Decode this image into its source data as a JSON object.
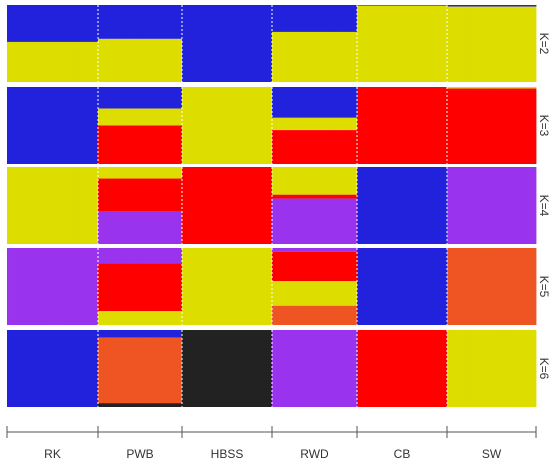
{
  "chart_data": {
    "type": "bar",
    "stacked": true,
    "normalized": true,
    "title": "",
    "xlabel": "",
    "ylabel": "",
    "ylim": [
      0,
      1
    ],
    "grid": false,
    "legend": "none",
    "separator_style": "white dotted vertical lines between populations; solid tick marks on the bottom axis",
    "colors": {
      "blue": "#2222dd",
      "yellow": "#dddd00",
      "red": "#ff0000",
      "purple": "#9933ee",
      "orange": "#ee5522",
      "black": "#222222"
    },
    "populations": [
      {
        "label": "RK",
        "individuals": 15
      },
      {
        "label": "PWB",
        "individuals": 15
      },
      {
        "label": "HBSS",
        "individuals": 15
      },
      {
        "label": "RWD",
        "individuals": 15
      },
      {
        "label": "CB",
        "individuals": 15
      },
      {
        "label": "SW",
        "individuals": 15
      }
    ],
    "panels": [
      {
        "label": "K=2",
        "cluster_order": [
          "blue",
          "yellow"
        ],
        "populations": [
          {
            "label": "RK",
            "proportions": [
              0.48,
              0.52
            ]
          },
          {
            "label": "PWB",
            "proportions": [
              0.44,
              0.56
            ]
          },
          {
            "label": "HBSS",
            "proportions": [
              1.0,
              0.0
            ]
          },
          {
            "label": "RWD",
            "proportions": [
              0.35,
              0.65
            ]
          },
          {
            "label": "CB",
            "proportions": [
              0.01,
              0.99
            ]
          },
          {
            "label": "SW",
            "proportions": [
              0.02,
              0.98
            ]
          }
        ]
      },
      {
        "label": "K=3",
        "cluster_order": [
          "blue",
          "yellow",
          "red"
        ],
        "populations": [
          {
            "label": "RK",
            "proportions": [
              1.0,
              0.0,
              0.0
            ]
          },
          {
            "label": "PWB",
            "proportions": [
              0.28,
              0.22,
              0.5
            ]
          },
          {
            "label": "HBSS",
            "proportions": [
              0.0,
              1.0,
              0.0
            ]
          },
          {
            "label": "RWD",
            "proportions": [
              0.4,
              0.16,
              0.44
            ]
          },
          {
            "label": "CB",
            "proportions": [
              0.0,
              0.0,
              1.0
            ]
          },
          {
            "label": "SW",
            "proportions": [
              0.0,
              0.02,
              0.98
            ]
          }
        ]
      },
      {
        "label": "K=4",
        "cluster_order": [
          "yellow",
          "red",
          "purple",
          "blue"
        ],
        "populations": [
          {
            "label": "RK",
            "proportions": [
              1.0,
              0.0,
              0.0,
              0.0
            ]
          },
          {
            "label": "PWB",
            "proportions": [
              0.15,
              0.43,
              0.42,
              0.0
            ]
          },
          {
            "label": "HBSS",
            "proportions": [
              0.0,
              1.0,
              0.0,
              0.0
            ]
          },
          {
            "label": "RWD",
            "proportions": [
              0.36,
              0.05,
              0.59,
              0.0
            ]
          },
          {
            "label": "CB",
            "proportions": [
              0.0,
              0.0,
              0.0,
              1.0
            ]
          },
          {
            "label": "SW",
            "proportions": [
              0.0,
              0.0,
              1.0,
              0.0
            ]
          }
        ]
      },
      {
        "label": "K=5",
        "cluster_order": [
          "purple",
          "red",
          "yellow",
          "blue",
          "orange"
        ],
        "populations": [
          {
            "label": "RK",
            "proportions": [
              1.0,
              0.0,
              0.0,
              0.0,
              0.0
            ]
          },
          {
            "label": "PWB",
            "proportions": [
              0.2,
              0.62,
              0.18,
              0.0,
              0.0
            ]
          },
          {
            "label": "HBSS",
            "proportions": [
              0.0,
              0.0,
              1.0,
              0.0,
              0.0
            ]
          },
          {
            "label": "RWD",
            "proportions": [
              0.05,
              0.38,
              0.32,
              0.0,
              0.25
            ]
          },
          {
            "label": "CB",
            "proportions": [
              0.0,
              0.0,
              0.0,
              1.0,
              0.0
            ]
          },
          {
            "label": "SW",
            "proportions": [
              0.0,
              0.0,
              0.0,
              0.0,
              1.0
            ]
          }
        ]
      },
      {
        "label": "K=6",
        "cluster_order": [
          "blue",
          "purple",
          "orange",
          "black",
          "red",
          "yellow"
        ],
        "populations": [
          {
            "label": "RK",
            "proportions": [
              1.0,
              0.0,
              0.0,
              0.0,
              0.0,
              0.0
            ]
          },
          {
            "label": "PWB",
            "proportions": [
              0.1,
              0.0,
              0.85,
              0.05,
              0.0,
              0.0
            ]
          },
          {
            "label": "HBSS",
            "proportions": [
              0.0,
              0.0,
              0.0,
              1.0,
              0.0,
              0.0
            ]
          },
          {
            "label": "RWD",
            "proportions": [
              0.0,
              1.0,
              0.0,
              0.0,
              0.0,
              0.0
            ]
          },
          {
            "label": "CB",
            "proportions": [
              0.0,
              0.0,
              0.0,
              0.0,
              1.0,
              0.0
            ]
          },
          {
            "label": "SW",
            "proportions": [
              0.0,
              0.0,
              0.0,
              0.0,
              0.0,
              1.0
            ]
          }
        ]
      }
    ]
  }
}
